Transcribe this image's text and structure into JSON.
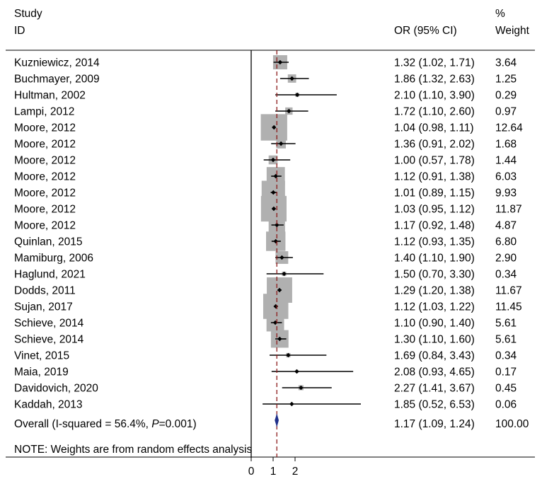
{
  "chart_data": {
    "type": "forest",
    "header": {
      "study_line1": "Study",
      "study_line2": "ID",
      "or_label": "OR (95% CI)",
      "weight_line1": "%",
      "weight_line2": "Weight"
    },
    "studies": [
      {
        "label": "Kuzniewicz, 2014",
        "or": 1.32,
        "lo": 1.02,
        "hi": 1.71,
        "or_text": "1.32 (1.02, 1.71)",
        "weight": 3.64,
        "weight_text": "3.64"
      },
      {
        "label": "Buchmayer, 2009",
        "or": 1.86,
        "lo": 1.32,
        "hi": 2.63,
        "or_text": "1.86 (1.32, 2.63)",
        "weight": 1.25,
        "weight_text": "1.25"
      },
      {
        "label": "Hultman, 2002",
        "or": 2.1,
        "lo": 1.1,
        "hi": 3.9,
        "or_text": "2.10 (1.10, 3.90)",
        "weight": 0.29,
        "weight_text": "0.29"
      },
      {
        "label": "Lampi, 2012",
        "or": 1.72,
        "lo": 1.1,
        "hi": 2.6,
        "or_text": "1.72 (1.10, 2.60)",
        "weight": 0.97,
        "weight_text": "0.97"
      },
      {
        "label": "Moore, 2012",
        "or": 1.04,
        "lo": 0.98,
        "hi": 1.11,
        "or_text": "1.04 (0.98, 1.11)",
        "weight": 12.64,
        "weight_text": "12.64"
      },
      {
        "label": "Moore, 2012",
        "or": 1.36,
        "lo": 0.91,
        "hi": 2.02,
        "or_text": "1.36 (0.91, 2.02)",
        "weight": 1.68,
        "weight_text": "1.68"
      },
      {
        "label": "Moore, 2012",
        "or": 1.0,
        "lo": 0.57,
        "hi": 1.78,
        "or_text": "1.00 (0.57, 1.78)",
        "weight": 1.44,
        "weight_text": "1.44"
      },
      {
        "label": "Moore, 2012",
        "or": 1.12,
        "lo": 0.91,
        "hi": 1.38,
        "or_text": "1.12 (0.91, 1.38)",
        "weight": 6.03,
        "weight_text": "6.03"
      },
      {
        "label": "Moore, 2012",
        "or": 1.01,
        "lo": 0.89,
        "hi": 1.15,
        "or_text": "1.01 (0.89, 1.15)",
        "weight": 9.93,
        "weight_text": "9.93"
      },
      {
        "label": "Moore, 2012",
        "or": 1.03,
        "lo": 0.95,
        "hi": 1.12,
        "or_text": "1.03 (0.95, 1.12)",
        "weight": 11.87,
        "weight_text": "11.87"
      },
      {
        "label": "Moore, 2012",
        "or": 1.17,
        "lo": 0.92,
        "hi": 1.48,
        "or_text": "1.17 (0.92, 1.48)",
        "weight": 4.87,
        "weight_text": "4.87"
      },
      {
        "label": "Quinlan, 2015",
        "or": 1.12,
        "lo": 0.93,
        "hi": 1.35,
        "or_text": "1.12 (0.93, 1.35)",
        "weight": 6.8,
        "weight_text": "6.80"
      },
      {
        "label": "Mamiburg, 2006",
        "or": 1.4,
        "lo": 1.1,
        "hi": 1.9,
        "or_text": "1.40 (1.10, 1.90)",
        "weight": 2.9,
        "weight_text": "2.90"
      },
      {
        "label": "Haglund, 2021",
        "or": 1.5,
        "lo": 0.7,
        "hi": 3.3,
        "or_text": "1.50 (0.70, 3.30)",
        "weight": 0.34,
        "weight_text": "0.34"
      },
      {
        "label": "Dodds, 2011",
        "or": 1.29,
        "lo": 1.2,
        "hi": 1.38,
        "or_text": "1.29 (1.20, 1.38)",
        "weight": 11.67,
        "weight_text": "11.67"
      },
      {
        "label": "Sujan, 2017",
        "or": 1.12,
        "lo": 1.03,
        "hi": 1.22,
        "or_text": "1.12 (1.03, 1.22)",
        "weight": 11.45,
        "weight_text": "11.45"
      },
      {
        "label": "Schieve, 2014",
        "or": 1.1,
        "lo": 0.9,
        "hi": 1.4,
        "or_text": "1.10 (0.90, 1.40)",
        "weight": 5.61,
        "weight_text": "5.61"
      },
      {
        "label": "Schieve, 2014",
        "or": 1.3,
        "lo": 1.1,
        "hi": 1.6,
        "or_text": "1.30 (1.10, 1.60)",
        "weight": 5.61,
        "weight_text": "5.61"
      },
      {
        "label": "Vinet, 2015",
        "or": 1.69,
        "lo": 0.84,
        "hi": 3.43,
        "or_text": "1.69 (0.84, 3.43)",
        "weight": 0.34,
        "weight_text": "0.34"
      },
      {
        "label": "Maia, 2019",
        "or": 2.08,
        "lo": 0.93,
        "hi": 4.65,
        "or_text": "2.08 (0.93, 4.65)",
        "weight": 0.17,
        "weight_text": "0.17"
      },
      {
        "label": "Davidovich, 2020",
        "or": 2.27,
        "lo": 1.41,
        "hi": 3.67,
        "or_text": "2.27 (1.41, 3.67)",
        "weight": 0.45,
        "weight_text": "0.45"
      },
      {
        "label": "Kaddah, 2013",
        "or": 1.85,
        "lo": 0.52,
        "hi": 6.53,
        "or_text": "1.85 (0.52, 6.53)",
        "weight": 0.06,
        "weight_text": "0.06"
      }
    ],
    "overall": {
      "label_prefix": "Overall  (I-squared = 56.4%, ",
      "label_p": "P",
      "label_suffix": "=0.001)",
      "or": 1.17,
      "lo": 1.09,
      "hi": 1.24,
      "or_text": "1.17 (1.09, 1.24)",
      "weight_text": "100.00"
    },
    "note": "NOTE: Weights are from random effects analysis",
    "x_ticks": [
      0,
      1,
      2
    ],
    "x_tick_labels": [
      "0",
      "1",
      "2"
    ],
    "xlim": [
      0,
      5
    ],
    "null_line": 0,
    "colors": {
      "box": "#b0b0b0",
      "ci": "#000000",
      "overall_line": "#8b1a1a",
      "diamond": "#1f2f8a"
    }
  }
}
